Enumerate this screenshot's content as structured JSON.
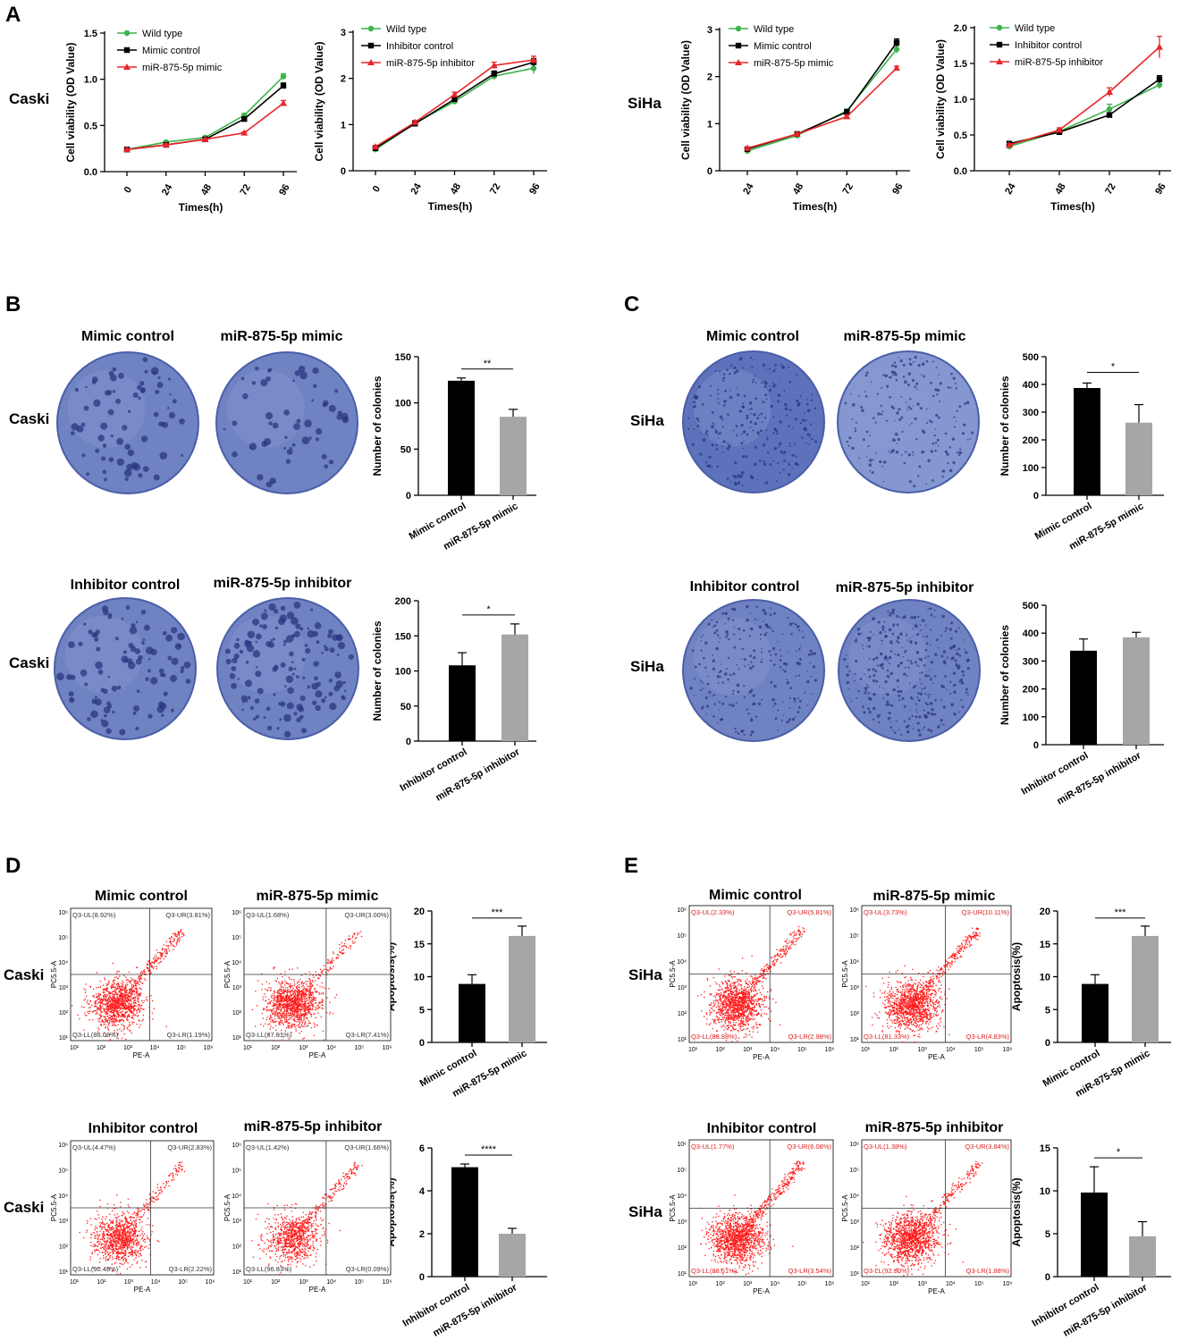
{
  "panel_letters": {
    "A": "A",
    "B": "B",
    "C": "C",
    "D": "D",
    "E": "E"
  },
  "colors": {
    "green": "#3cb44b",
    "black": "#000000",
    "red": "#e8262a",
    "gray": "#a6a6a6",
    "plate": "#6f82c2",
    "plate_edge": "#4b5ea8",
    "dot": "#2a3680",
    "flow": "#ff1a1a"
  },
  "sections": {
    "caski": "Caski",
    "siha": "SiHa",
    "flow_axes": {
      "x": "PE-A",
      "y": "PC5.5-A"
    },
    "plate_titles": {
      "mimic_control": "Mimic control",
      "mimic": "miR-875-5p mimic",
      "inhibitor_control": "Inhibitor control",
      "inhibitor": "miR-875-5p inhibitor"
    },
    "flow_sub": {
      "ticks": [
        "10¹",
        "10²",
        "10³",
        "10⁴",
        "10⁵",
        "10⁶"
      ],
      "d_mc": {
        "ul": "Q3-UL(8.92%)",
        "ur": "Q3-UR(3.81%)",
        "ll": "Q3-LL(86.08%)",
        "lr": "Q3-LR(1.19%)"
      },
      "d_mm": {
        "ul": "Q3-UL(1.68%)",
        "ur": "Q3-UR(3.00%)",
        "ll": "Q3-LL(87.91%)",
        "lr": "Q3-LR(7.41%)"
      },
      "d_ic": {
        "ul": "Q3-UL(4.47%)",
        "ur": "Q3-UR(2.83%)",
        "ll": "Q3-LL(90.48%)",
        "lr": "Q3-LR(2.22%)"
      },
      "d_ii": {
        "ul": "Q3-UL(1.42%)",
        "ur": "Q3-UR(1.66%)",
        "ll": "Q3-LL(96.83%)",
        "lr": "Q3-LR(0.09%)"
      },
      "e_mc": {
        "ul": "Q3-UL(2.33%)",
        "ur": "Q3-UR(5.81%)",
        "ll": "Q3-LL(88.88%)",
        "lr": "Q3-LR(2.98%)"
      },
      "e_mm": {
        "ul": "Q3-UL(3.73%)",
        "ur": "Q3-UR(10.11%)",
        "ll": "Q3-LL(81.33%)",
        "lr": "Q3-LR(4.83%)"
      },
      "e_ic": {
        "ul": "Q3-UL(1.77%)",
        "ur": "Q3-UR(6.08%)",
        "ll": "Q3-LL(88.61%)",
        "lr": "Q3-LR(3.54%)"
      },
      "e_ii": {
        "ul": "Q3-UL(1.38%)",
        "ur": "Q3-UR(3.84%)",
        "ll": "Q3-LL(92.90%)",
        "lr": "Q3-LR(1.88%)"
      }
    }
  },
  "chart_data": [
    {
      "id": "A1",
      "type": "line",
      "title": "",
      "xlabel": "Times(h)",
      "ylabel": "Cell viability (OD Value)",
      "categories": [
        "0",
        "24",
        "48",
        "72",
        "96"
      ],
      "ylim": [
        0,
        1.5
      ],
      "yticks": [
        0,
        0.5,
        1.0,
        1.5
      ],
      "ytick_labels": [
        "0.0",
        "0.5",
        "1.0",
        "1.5"
      ],
      "series": [
        {
          "name": "Wild type",
          "color": "green",
          "marker": "circle",
          "values": [
            0.24,
            0.32,
            0.37,
            0.61,
            1.03
          ],
          "err": [
            0.01,
            0.01,
            0.01,
            0.02,
            0.03
          ]
        },
        {
          "name": "Mimic control",
          "color": "black",
          "marker": "square",
          "values": [
            0.24,
            0.29,
            0.35,
            0.57,
            0.93
          ],
          "err": [
            0.01,
            0.01,
            0.01,
            0.02,
            0.03
          ]
        },
        {
          "name": "miR-875-5p mimic",
          "color": "red",
          "marker": "triangle",
          "values": [
            0.24,
            0.29,
            0.35,
            0.42,
            0.74
          ],
          "err": [
            0.01,
            0.01,
            0.01,
            0.01,
            0.03
          ]
        }
      ]
    },
    {
      "id": "A2",
      "type": "line",
      "title": "",
      "xlabel": "Times(h)",
      "ylabel": "Cell viability (OD Value)",
      "categories": [
        "0",
        "24",
        "48",
        "72",
        "96"
      ],
      "ylim": [
        0,
        3
      ],
      "yticks": [
        0,
        1,
        2,
        3
      ],
      "ytick_labels": [
        "0",
        "1",
        "2",
        "3"
      ],
      "series": [
        {
          "name": "Wild type",
          "color": "green",
          "marker": "circle",
          "values": [
            0.46,
            1.03,
            1.5,
            2.05,
            2.22
          ],
          "err": [
            0.03,
            0.04,
            0.05,
            0.08,
            0.12
          ]
        },
        {
          "name": "Inhibitor control",
          "color": "black",
          "marker": "square",
          "values": [
            0.49,
            1.02,
            1.55,
            2.1,
            2.35
          ],
          "err": [
            0.03,
            0.04,
            0.05,
            0.06,
            0.08
          ]
        },
        {
          "name": "miR-875-5p inhibitor",
          "color": "red",
          "marker": "triangle",
          "values": [
            0.52,
            1.05,
            1.65,
            2.28,
            2.4
          ],
          "err": [
            0.03,
            0.04,
            0.05,
            0.07,
            0.08
          ]
        }
      ]
    },
    {
      "id": "A3",
      "type": "line",
      "title": "",
      "xlabel": "Times(h)",
      "ylabel": "Cell viability (OD Value)",
      "categories": [
        "24",
        "48",
        "72",
        "96"
      ],
      "ylim": [
        0,
        3
      ],
      "yticks": [
        0,
        1,
        2,
        3
      ],
      "ytick_labels": [
        "0",
        "1",
        "2",
        "3"
      ],
      "series": [
        {
          "name": "Wild type",
          "color": "green",
          "marker": "circle",
          "values": [
            0.42,
            0.75,
            1.27,
            2.58
          ],
          "err": [
            0.03,
            0.04,
            0.04,
            0.08
          ]
        },
        {
          "name": "Mimic control",
          "color": "black",
          "marker": "square",
          "values": [
            0.46,
            0.78,
            1.25,
            2.72
          ],
          "err": [
            0.03,
            0.04,
            0.04,
            0.08
          ]
        },
        {
          "name": "miR-875-5p mimic",
          "color": "red",
          "marker": "triangle",
          "values": [
            0.48,
            0.78,
            1.15,
            2.18
          ],
          "err": [
            0.03,
            0.03,
            0.03,
            0.04
          ]
        }
      ]
    },
    {
      "id": "A4",
      "type": "line",
      "title": "",
      "xlabel": "Times(h)",
      "ylabel": "Cell viability (OD Value)",
      "categories": [
        "24",
        "48",
        "72",
        "96"
      ],
      "ylim": [
        0,
        2
      ],
      "yticks": [
        0,
        0.5,
        1.0,
        1.5,
        2.0
      ],
      "ytick_labels": [
        "0.0",
        "0.5",
        "1.0",
        "1.5",
        "2.0"
      ],
      "series": [
        {
          "name": "Wild type",
          "color": "green",
          "marker": "circle",
          "values": [
            0.34,
            0.55,
            0.86,
            1.2
          ],
          "err": [
            0.03,
            0.03,
            0.07,
            0.05
          ]
        },
        {
          "name": "Inhibitor control",
          "color": "black",
          "marker": "square",
          "values": [
            0.38,
            0.54,
            0.78,
            1.28
          ],
          "err": [
            0.02,
            0.02,
            0.03,
            0.05
          ]
        },
        {
          "name": "miR-875-5p inhibitor",
          "color": "red",
          "marker": "triangle",
          "values": [
            0.36,
            0.57,
            1.1,
            1.73
          ],
          "err": [
            0.02,
            0.03,
            0.06,
            0.15
          ]
        }
      ]
    },
    {
      "id": "B1",
      "type": "bar",
      "ylabel": "Number of colonies",
      "categories": [
        "Mimic control",
        "miR-875-5p mimic"
      ],
      "values": [
        124,
        85
      ],
      "err": [
        3,
        8
      ],
      "colors": [
        "black",
        "gray"
      ],
      "ylim": [
        0,
        150
      ],
      "yticks": [
        0,
        50,
        100,
        150
      ],
      "sig": "**"
    },
    {
      "id": "B2",
      "type": "bar",
      "ylabel": "Number of colonies",
      "categories": [
        "Inhibitor control",
        "miR-875-5p inhibitor"
      ],
      "values": [
        108,
        152
      ],
      "err": [
        18,
        15
      ],
      "colors": [
        "black",
        "gray"
      ],
      "ylim": [
        0,
        200
      ],
      "yticks": [
        0,
        50,
        100,
        150,
        200
      ],
      "sig": "*"
    },
    {
      "id": "C1",
      "type": "bar",
      "ylabel": "Number of colonies",
      "categories": [
        "Mimic control",
        "miR-875-5p mimic"
      ],
      "values": [
        387,
        262
      ],
      "err": [
        18,
        65
      ],
      "colors": [
        "black",
        "gray"
      ],
      "ylim": [
        0,
        500
      ],
      "yticks": [
        0,
        100,
        200,
        300,
        400,
        500
      ],
      "sig": "*"
    },
    {
      "id": "C2",
      "type": "bar",
      "ylabel": "Number of colonies",
      "categories": [
        "Inhibitor control",
        "miR-875-5p inhibitor"
      ],
      "values": [
        337,
        385
      ],
      "err": [
        42,
        18
      ],
      "colors": [
        "black",
        "gray"
      ],
      "ylim": [
        0,
        500
      ],
      "yticks": [
        0,
        100,
        200,
        300,
        400,
        500
      ],
      "sig": ""
    },
    {
      "id": "D1",
      "type": "bar",
      "ylabel": "Apoptosis(%)",
      "categories": [
        "Mimic control",
        "miR-875-5p mimic"
      ],
      "values": [
        8.9,
        16.2
      ],
      "err": [
        1.4,
        1.5
      ],
      "colors": [
        "black",
        "gray"
      ],
      "ylim": [
        0,
        20
      ],
      "yticks": [
        0,
        5,
        10,
        15,
        20
      ],
      "sig": "***"
    },
    {
      "id": "D2",
      "type": "bar",
      "ylabel": "Apoptosis(%)",
      "categories": [
        "Inhibitor control",
        "miR-875-5p inhibitor"
      ],
      "values": [
        5.1,
        2.0
      ],
      "err": [
        0.15,
        0.25
      ],
      "colors": [
        "black",
        "gray"
      ],
      "ylim": [
        0,
        6
      ],
      "yticks": [
        0,
        2,
        4,
        6
      ],
      "sig": "****"
    },
    {
      "id": "E1",
      "type": "bar",
      "ylabel": "Apoptosis(%)",
      "categories": [
        "Mimic control",
        "miR-875-5p mimic"
      ],
      "values": [
        8.9,
        16.2
      ],
      "err": [
        1.4,
        1.5
      ],
      "colors": [
        "black",
        "gray"
      ],
      "ylim": [
        0,
        20
      ],
      "yticks": [
        0,
        5,
        10,
        15,
        20
      ],
      "sig": "***"
    },
    {
      "id": "E2",
      "type": "bar",
      "ylabel": "Apoptosis(%)",
      "categories": [
        "Inhibitor control",
        "miR-875-5p inhibitor"
      ],
      "values": [
        9.8,
        4.7
      ],
      "err": [
        3.0,
        1.7
      ],
      "colors": [
        "black",
        "gray"
      ],
      "ylim": [
        0,
        15
      ],
      "yticks": [
        0,
        5,
        10,
        15
      ],
      "sig": "*"
    }
  ]
}
